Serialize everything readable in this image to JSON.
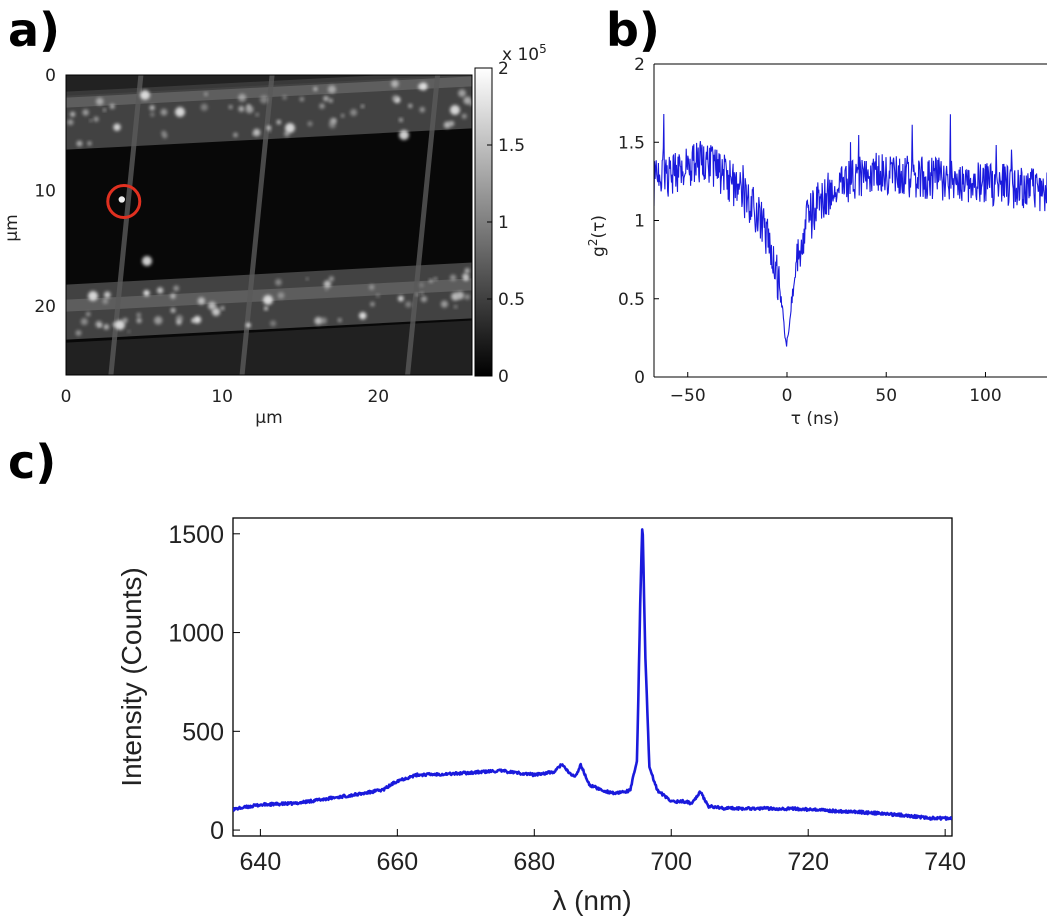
{
  "panel_labels": {
    "a": "a)",
    "b": "b)",
    "c": "c)"
  },
  "colors": {
    "trace": "#1a1adc",
    "marker": "#e03020",
    "frame": "#000000"
  },
  "chart_data": [
    {
      "id": "a",
      "type": "heatmap",
      "xlabel": "μm",
      "ylabel": "μm",
      "xlim": [
        0,
        26
      ],
      "ylim": [
        0,
        26
      ],
      "x_ticks": [
        0,
        10,
        20
      ],
      "y_ticks": [
        0,
        10,
        20
      ],
      "colorbar": {
        "range": [
          0,
          2
        ],
        "ticks": [
          "0",
          "0.5",
          "1",
          "1.5",
          "2"
        ],
        "multiplier": "x 10",
        "multiplier_exp": "5",
        "colormap": "gray"
      },
      "grid": {
        "vertical_lines_um": [
          3.9,
          12.3,
          22.9
        ],
        "horizontal_bands_um": [
          [
            2.5,
            7.5
          ],
          [
            19.5,
            24.5
          ]
        ]
      },
      "marker": {
        "shape": "circle",
        "x_um": 3.7,
        "y_um": 12.0,
        "color": "#e03020"
      }
    },
    {
      "id": "b",
      "type": "line",
      "xlabel": "τ (ns)",
      "ylabel": "g",
      "ylabel_sup": "2",
      "ylabel_suffix": "(τ)",
      "xlim": [
        -67,
        131
      ],
      "ylim": [
        0,
        2
      ],
      "x_ticks": [
        "−50",
        "0",
        "50",
        "100"
      ],
      "x_tick_values": [
        -50,
        0,
        50,
        100
      ],
      "y_ticks": [
        "0",
        "0.5",
        "1",
        "1.5",
        "2"
      ],
      "y_tick_values": [
        0,
        0.5,
        1,
        1.5,
        2
      ],
      "series": [
        {
          "x": [
            -65,
            -55,
            -45,
            -35,
            -25,
            -15,
            -10,
            -6,
            -3,
            -1,
            0,
            1,
            3,
            6,
            10,
            15,
            25,
            40,
            60,
            80,
            100,
            120,
            130
          ],
          "y": [
            1.25,
            1.32,
            1.38,
            1.33,
            1.2,
            1.05,
            0.9,
            0.7,
            0.5,
            0.3,
            0.22,
            0.35,
            0.55,
            0.8,
            1.0,
            1.1,
            1.22,
            1.3,
            1.28,
            1.26,
            1.24,
            1.2,
            1.2
          ]
        }
      ]
    },
    {
      "id": "c",
      "type": "line",
      "xlabel": "λ (nm)",
      "ylabel": "Intensity (Counts)",
      "xlim": [
        636,
        741
      ],
      "ylim": [
        -30,
        1580
      ],
      "x_ticks": [
        "640",
        "660",
        "680",
        "700",
        "720",
        "740"
      ],
      "x_tick_values": [
        640,
        660,
        680,
        700,
        720,
        740
      ],
      "y_ticks": [
        "0",
        "500",
        "1000",
        "1500"
      ],
      "y_tick_values": [
        0,
        500,
        1000,
        1500
      ],
      "series": [
        {
          "x": [
            636,
            640,
            645,
            650,
            655,
            658,
            660,
            663,
            668,
            675,
            680,
            683,
            684,
            685,
            686,
            686.8,
            688,
            690,
            692,
            694,
            695,
            695.5,
            695.8,
            696.2,
            696.8,
            698,
            700,
            702,
            703,
            704.2,
            705.5,
            708,
            712,
            718,
            722,
            728,
            734,
            738,
            741
          ],
          "y": [
            105,
            128,
            135,
            160,
            185,
            205,
            250,
            280,
            285,
            300,
            280,
            295,
            335,
            290,
            270,
            330,
            230,
            200,
            185,
            200,
            350,
            1200,
            1580,
            900,
            320,
            200,
            145,
            145,
            135,
            195,
            120,
            110,
            110,
            108,
            100,
            90,
            75,
            60,
            60
          ]
        }
      ]
    }
  ]
}
